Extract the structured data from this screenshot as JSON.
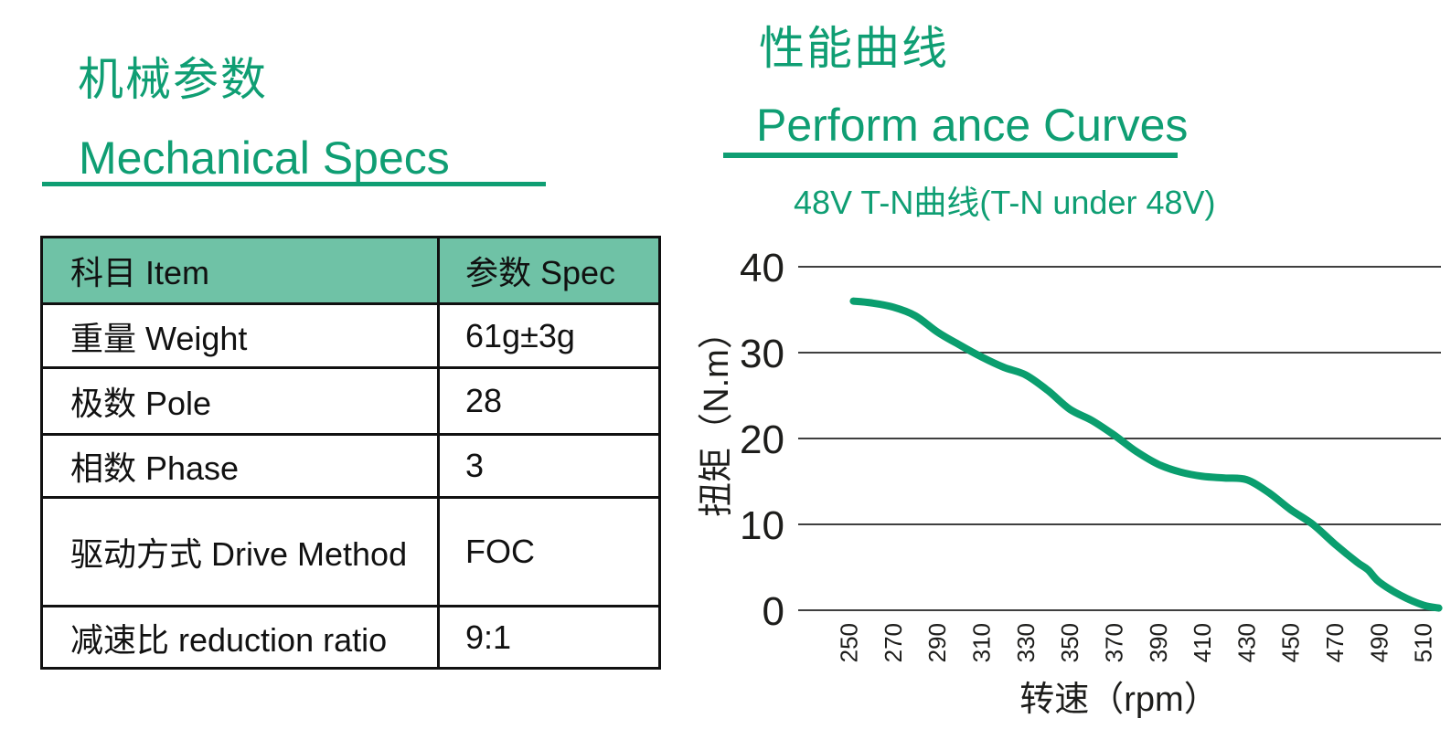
{
  "colors": {
    "accent": "#0f9e73",
    "curve": "#0a9e6e",
    "table_header_bg": "#6fc2a6",
    "table_border": "#111111",
    "chart_text": "#1d1d1b",
    "gridline": "#3f3f3f"
  },
  "left": {
    "title_zh": "机械参数",
    "title_en": "Mechanical Specs",
    "table": {
      "headers": [
        "科目 Item",
        "参数 Spec"
      ],
      "rows": [
        {
          "item": "重量 Weight",
          "spec": "61g±3g"
        },
        {
          "item": "极数 Pole",
          "spec": "28"
        },
        {
          "item": "相数 Phase",
          "spec": "3"
        },
        {
          "item": "驱动方式 Drive Method",
          "spec": "FOC"
        },
        {
          "item": "减速比 reduction ratio",
          "spec": "9:1"
        }
      ]
    }
  },
  "right": {
    "title_zh": "性能曲线",
    "title_en": "Perform ance Curves",
    "chart_title": "48V T-N曲线(T-N under 48V)"
  },
  "chart_data": {
    "type": "line",
    "title": "48V T-N曲线(T-N under 48V)",
    "xlabel": "转速（rpm）",
    "ylabel": "扭矩（N.m）",
    "x_ticks": [
      250,
      270,
      290,
      310,
      330,
      350,
      370,
      390,
      410,
      430,
      450,
      470,
      490,
      510
    ],
    "y_ticks": [
      0,
      10,
      20,
      30,
      40
    ],
    "xlim": [
      227,
      518
    ],
    "ylim": [
      0,
      40
    ],
    "grid": "horizontal",
    "legend": "none",
    "series": [
      {
        "name": "48V T-N",
        "points": [
          [
            252,
            36.0
          ],
          [
            260,
            35.8
          ],
          [
            270,
            35.3
          ],
          [
            280,
            34.3
          ],
          [
            290,
            32.4
          ],
          [
            300,
            30.9
          ],
          [
            310,
            29.5
          ],
          [
            320,
            28.3
          ],
          [
            330,
            27.4
          ],
          [
            340,
            25.6
          ],
          [
            350,
            23.4
          ],
          [
            360,
            22.1
          ],
          [
            370,
            20.4
          ],
          [
            380,
            18.5
          ],
          [
            390,
            17.0
          ],
          [
            400,
            16.1
          ],
          [
            410,
            15.6
          ],
          [
            420,
            15.4
          ],
          [
            430,
            15.2
          ],
          [
            440,
            13.7
          ],
          [
            450,
            11.7
          ],
          [
            460,
            10.0
          ],
          [
            470,
            7.7
          ],
          [
            480,
            5.6
          ],
          [
            485,
            4.7
          ],
          [
            490,
            3.3
          ],
          [
            500,
            1.7
          ],
          [
            510,
            0.6
          ],
          [
            517,
            0.25
          ]
        ]
      }
    ]
  }
}
